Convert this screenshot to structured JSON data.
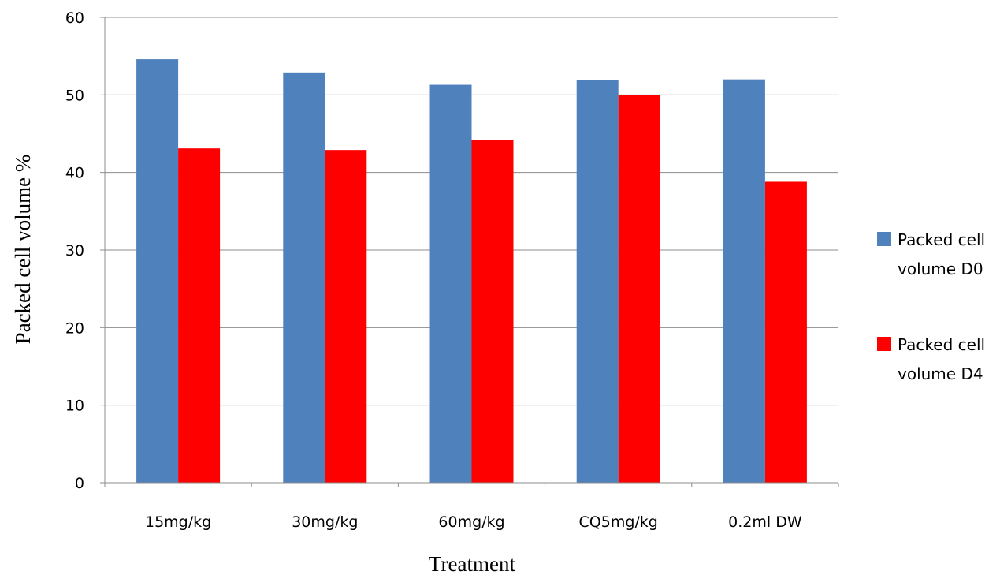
{
  "chart_data": {
    "type": "bar",
    "title": "",
    "xlabel": "Treatment",
    "ylabel": "Packed cell volume %",
    "ylim": [
      0,
      60
    ],
    "yticks": [
      0,
      10,
      20,
      30,
      40,
      50,
      60
    ],
    "grid": true,
    "legend_position": "right",
    "categories": [
      "15mg/kg",
      "30mg/kg",
      "60mg/kg",
      "CQ5mg/kg",
      "0.2ml DW"
    ],
    "series": [
      {
        "name_lines": [
          "Packed cell",
          "volume D0"
        ],
        "color": "#4F81BD",
        "values": [
          54.6,
          52.9,
          51.3,
          51.9,
          52.0
        ]
      },
      {
        "name_lines": [
          "Packed cell",
          "volume D4"
        ],
        "color": "#FF0000",
        "values": [
          43.1,
          42.9,
          44.2,
          50.0,
          38.8
        ]
      }
    ]
  }
}
